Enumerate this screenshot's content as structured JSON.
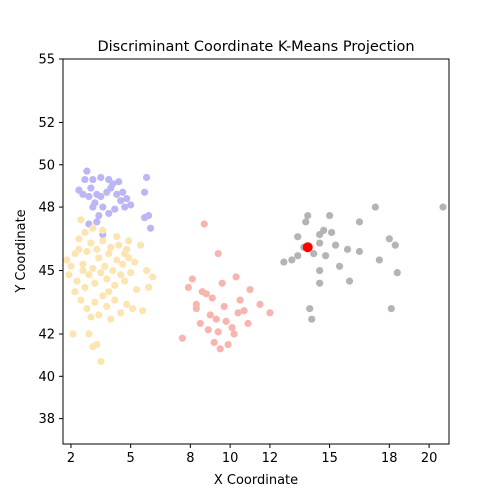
{
  "chart_data": {
    "type": "scatter",
    "title": "Discriminant Coordinate K-Means Projection",
    "xlabel": "X Coordinate",
    "ylabel": "Y Coordinate",
    "xlim": [
      1.6,
      21.0
    ],
    "ylim": [
      36.8,
      55.0
    ],
    "xticks": [
      2,
      5,
      8,
      10,
      12,
      15,
      18,
      20
    ],
    "xtick_labels": [
      "2",
      "5",
      "8",
      "10",
      "12",
      "15",
      "18",
      "20"
    ],
    "yticks": [
      38,
      40,
      42,
      45,
      48,
      50,
      52,
      55
    ],
    "ytick_labels": [
      "38",
      "40",
      "42",
      "45",
      "48",
      "50",
      "52",
      "55"
    ],
    "grid": false,
    "colors": {
      "cluster_purple": "#bbb6f5",
      "cluster_yellow": "#fde5b2",
      "cluster_pink": "#f8b5b0",
      "cluster_gray": "#b4b4b4",
      "centroid": "#ff0000"
    },
    "series": [
      {
        "color": "#bbb6f5",
        "points": [
          [
            2.8,
            49.7
          ],
          [
            3.1,
            49.3
          ],
          [
            3.5,
            49.4
          ],
          [
            3.9,
            49.3
          ],
          [
            4.1,
            49.1
          ],
          [
            5.8,
            49.4
          ],
          [
            2.7,
            49.3
          ],
          [
            2.4,
            48.8
          ],
          [
            3.0,
            48.9
          ],
          [
            3.3,
            48.6
          ],
          [
            3.5,
            48.5
          ],
          [
            3.8,
            48.7
          ],
          [
            4.0,
            48.9
          ],
          [
            4.3,
            48.6
          ],
          [
            4.5,
            48.3
          ],
          [
            4.8,
            48.4
          ],
          [
            5.7,
            48.7
          ],
          [
            2.9,
            48.5
          ],
          [
            3.2,
            48.2
          ],
          [
            2.6,
            48.6
          ],
          [
            3.1,
            48.0
          ],
          [
            3.6,
            48.0
          ],
          [
            4.2,
            47.9
          ],
          [
            4.7,
            48.0
          ],
          [
            5.0,
            48.1
          ],
          [
            3.4,
            47.6
          ],
          [
            3.9,
            47.7
          ],
          [
            5.7,
            47.5
          ],
          [
            6.0,
            47.0
          ],
          [
            2.9,
            47.2
          ],
          [
            3.3,
            47.3
          ],
          [
            5.9,
            47.6
          ],
          [
            3.6,
            46.7
          ],
          [
            4.6,
            48.7
          ],
          [
            4.4,
            49.2
          ]
        ]
      },
      {
        "color": "#fde5b2",
        "points": [
          [
            2.5,
            47.4
          ],
          [
            1.8,
            45.5
          ],
          [
            1.9,
            44.8
          ],
          [
            2.0,
            45.2
          ],
          [
            2.2,
            45.8
          ],
          [
            2.3,
            44.5
          ],
          [
            2.4,
            46.0
          ],
          [
            2.6,
            45.3
          ],
          [
            2.7,
            44.2
          ],
          [
            2.8,
            45.9
          ],
          [
            2.9,
            44.8
          ],
          [
            3.0,
            46.3
          ],
          [
            3.1,
            45.1
          ],
          [
            3.2,
            44.4
          ],
          [
            3.3,
            46.0
          ],
          [
            3.4,
            45.6
          ],
          [
            3.5,
            44.9
          ],
          [
            3.6,
            46.4
          ],
          [
            3.7,
            45.2
          ],
          [
            3.8,
            44.6
          ],
          [
            3.9,
            45.8
          ],
          [
            4.0,
            46.1
          ],
          [
            4.1,
            45.0
          ],
          [
            4.2,
            44.3
          ],
          [
            4.3,
            45.5
          ],
          [
            4.4,
            46.2
          ],
          [
            4.5,
            44.8
          ],
          [
            4.6,
            45.3
          ],
          [
            4.7,
            44.5
          ],
          [
            4.8,
            46.0
          ],
          [
            4.9,
            45.6
          ],
          [
            5.0,
            44.9
          ],
          [
            5.2,
            45.4
          ],
          [
            5.5,
            46.2
          ],
          [
            5.8,
            45.0
          ],
          [
            6.1,
            44.7
          ],
          [
            2.5,
            43.6
          ],
          [
            2.8,
            43.2
          ],
          [
            3.0,
            42.8
          ],
          [
            3.2,
            43.5
          ],
          [
            3.4,
            42.9
          ],
          [
            3.6,
            43.8
          ],
          [
            3.8,
            43.3
          ],
          [
            4.0,
            42.7
          ],
          [
            4.2,
            43.6
          ],
          [
            4.5,
            43.0
          ],
          [
            4.8,
            43.4
          ],
          [
            5.1,
            43.2
          ],
          [
            5.6,
            43.1
          ],
          [
            5.9,
            44.2
          ],
          [
            2.1,
            42.0
          ],
          [
            2.9,
            42.0
          ],
          [
            3.1,
            41.4
          ],
          [
            3.3,
            41.5
          ],
          [
            3.5,
            40.7
          ],
          [
            2.4,
            46.5
          ],
          [
            2.7,
            46.8
          ],
          [
            3.1,
            47.0
          ],
          [
            3.6,
            46.9
          ],
          [
            4.3,
            46.6
          ],
          [
            4.9,
            46.4
          ],
          [
            2.2,
            44.0
          ],
          [
            5.3,
            44.1
          ],
          [
            2.6,
            45.0
          ],
          [
            3.9,
            44.0
          ],
          [
            4.7,
            45.8
          ]
        ]
      },
      {
        "color": "#f8b5b0",
        "points": [
          [
            8.7,
            47.2
          ],
          [
            9.4,
            45.8
          ],
          [
            10.3,
            44.7
          ],
          [
            7.9,
            44.2
          ],
          [
            8.1,
            44.6
          ],
          [
            8.8,
            43.9
          ],
          [
            9.6,
            44.4
          ],
          [
            11.0,
            44.1
          ],
          [
            9.7,
            43.3
          ],
          [
            8.3,
            43.2
          ],
          [
            10.4,
            43.0
          ],
          [
            10.7,
            43.1
          ],
          [
            11.5,
            43.4
          ],
          [
            12.0,
            43.0
          ],
          [
            9.0,
            42.9
          ],
          [
            8.5,
            42.5
          ],
          [
            9.3,
            42.7
          ],
          [
            9.8,
            42.6
          ],
          [
            10.9,
            42.5
          ],
          [
            10.1,
            42.3
          ],
          [
            8.9,
            42.2
          ],
          [
            7.6,
            41.8
          ],
          [
            9.2,
            41.6
          ],
          [
            9.5,
            41.3
          ],
          [
            9.9,
            41.5
          ],
          [
            8.3,
            43.4
          ],
          [
            9.4,
            42.1
          ],
          [
            10.5,
            43.6
          ],
          [
            9.1,
            43.7
          ],
          [
            8.6,
            44.0
          ],
          [
            10.2,
            42.0
          ]
        ]
      },
      {
        "color": "#b4b4b4",
        "points": [
          [
            20.7,
            48.0
          ],
          [
            17.3,
            48.0
          ],
          [
            15.0,
            47.6
          ],
          [
            13.9,
            47.6
          ],
          [
            16.5,
            47.3
          ],
          [
            13.8,
            47.3
          ],
          [
            14.7,
            46.9
          ],
          [
            13.4,
            46.6
          ],
          [
            14.5,
            46.7
          ],
          [
            15.1,
            46.8
          ],
          [
            13.7,
            46.1
          ],
          [
            14.5,
            46.3
          ],
          [
            15.3,
            46.2
          ],
          [
            18.0,
            46.5
          ],
          [
            18.3,
            46.2
          ],
          [
            13.4,
            45.7
          ],
          [
            14.2,
            45.8
          ],
          [
            13.1,
            45.5
          ],
          [
            14.8,
            45.7
          ],
          [
            17.5,
            45.5
          ],
          [
            15.5,
            45.2
          ],
          [
            14.5,
            45.0
          ],
          [
            16.0,
            44.5
          ],
          [
            18.4,
            44.9
          ],
          [
            14.5,
            44.4
          ],
          [
            18.1,
            43.2
          ],
          [
            14.1,
            42.7
          ],
          [
            14.0,
            43.2
          ],
          [
            16.5,
            45.9
          ],
          [
            15.9,
            46.0
          ],
          [
            12.7,
            45.4
          ]
        ]
      }
    ],
    "centroids": [
      [
        13.9,
        46.1
      ]
    ]
  }
}
